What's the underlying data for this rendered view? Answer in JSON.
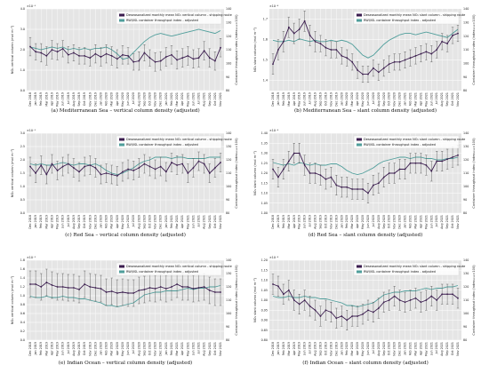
{
  "colors": {
    "no2": "#3b1d4f",
    "container": "#4f9e9b",
    "err": "#5a5a5a",
    "panel_bg": "#e5e5e5",
    "grid": "#ffffff"
  },
  "legend": {
    "no2_vertical": "Deseasonalized monthly mean NO₂ vertical column - shipping route",
    "no2_slant": "Deseasonalized monthly mean NO₂ slant column - shipping route",
    "container": "RWI/ISL container throughput index - adjusted"
  },
  "axis_labels": {
    "no2_vertical": "NO₂ vertical column (mol m⁻²)",
    "no2_slant": "NO₂ slant column (mol m⁻²)",
    "container": "Container throughput index (index₂₀₁₅=100)",
    "exp_vertical": "×10⁻⁵",
    "exp_slant": "×10⁻⁴"
  },
  "months": [
    "Dec 2018",
    "Jan 2019",
    "Feb 2019",
    "Mar 2019",
    "Apr 2019",
    "May 2019",
    "Jun 2019",
    "Jul 2019",
    "Aug 2019",
    "Sep 2019",
    "Oct 2019",
    "Nov 2019",
    "Dec 2019",
    "Jan 2020",
    "Feb 2020",
    "Mar 2020",
    "Apr 2020",
    "May 2020",
    "Jun 2020",
    "Jul 2020",
    "Aug 2020",
    "Sep 2020",
    "Oct 2020",
    "Nov 2020",
    "Dec 2020",
    "Jan 2021",
    "Feb 2021",
    "Mar 2021",
    "Apr 2021",
    "May 2021",
    "Jun 2021",
    "Jul 2021",
    "Aug 2021",
    "Sep 2021",
    "Oct 2021",
    "Nov 2021"
  ],
  "chart_data": [
    {
      "type": "line",
      "caption": "(a) Mediterranean Sea – vertical column density (adjusted)",
      "kind": "vertical",
      "ylim": [
        0,
        4
      ],
      "yticks": [
        0,
        1,
        2,
        3,
        4
      ],
      "ytick_labels": [
        "0.0",
        "1.0",
        "2.0",
        "3.0",
        "4.0"
      ],
      "y2lim": [
        80,
        140
      ],
      "y2ticks": [
        80,
        90,
        100,
        110,
        120,
        130,
        140
      ],
      "series": [
        {
          "values": [
            2.15,
            1.9,
            1.85,
            1.7,
            2.0,
            1.9,
            2.05,
            1.75,
            1.85,
            1.7,
            1.7,
            1.6,
            1.8,
            1.65,
            1.8,
            1.7,
            1.55,
            1.75,
            1.7,
            1.4,
            1.45,
            1.85,
            1.6,
            1.4,
            1.45,
            1.65,
            1.75,
            1.5,
            1.6,
            1.7,
            1.55,
            1.6,
            1.95,
            1.6,
            1.45,
            2.1
          ],
          "errors": [
            0.45,
            0.4,
            0.45,
            0.45,
            0.45,
            0.4,
            0.4,
            0.4,
            0.4,
            0.4,
            0.4,
            0.4,
            0.45,
            0.45,
            0.45,
            0.45,
            0.45,
            0.45,
            0.4,
            0.4,
            0.45,
            0.4,
            0.4,
            0.45,
            0.45,
            0.45,
            0.45,
            0.45,
            0.45,
            0.45,
            0.45,
            0.45,
            0.45,
            0.45,
            0.45,
            0.45
          ]
        },
        {
          "axis": "right",
          "values": [
            112,
            111,
            110,
            111,
            112,
            111,
            112,
            110,
            111,
            110,
            111,
            110,
            111,
            111,
            112,
            110,
            107,
            103,
            104,
            108,
            112,
            116,
            119,
            121,
            122,
            121,
            120,
            121,
            122,
            123,
            124,
            125,
            124,
            123,
            122,
            124
          ]
        }
      ]
    },
    {
      "type": "line",
      "caption": "(b) Mediterranean Sea – slant column density (adjusted)",
      "kind": "slant",
      "ylim": [
        1.35,
        1.75
      ],
      "yticks": [
        1.4,
        1.5,
        1.6,
        1.7
      ],
      "ytick_labels": [
        "1.4",
        "1.5",
        "1.6",
        "1.7"
      ],
      "y2lim": [
        80,
        140
      ],
      "y2ticks": [
        80,
        90,
        100,
        110,
        120,
        130,
        140
      ],
      "series": [
        {
          "values": [
            1.48,
            1.55,
            1.59,
            1.66,
            1.63,
            1.65,
            1.69,
            1.62,
            1.59,
            1.58,
            1.56,
            1.55,
            1.55,
            1.52,
            1.51,
            1.49,
            1.45,
            1.43,
            1.43,
            1.46,
            1.44,
            1.46,
            1.48,
            1.49,
            1.49,
            1.5,
            1.51,
            1.52,
            1.53,
            1.54,
            1.53,
            1.55,
            1.59,
            1.58,
            1.62,
            1.63
          ],
          "errors": [
            0.05,
            0.05,
            0.05,
            0.05,
            0.05,
            0.05,
            0.05,
            0.05,
            0.05,
            0.04,
            0.04,
            0.04,
            0.04,
            0.04,
            0.04,
            0.04,
            0.04,
            0.04,
            0.04,
            0.04,
            0.04,
            0.04,
            0.04,
            0.04,
            0.04,
            0.04,
            0.04,
            0.04,
            0.04,
            0.04,
            0.04,
            0.04,
            0.04,
            0.04,
            0.04,
            0.04
          ]
        },
        {
          "axis": "right",
          "values": [
            117,
            116,
            116,
            117,
            116,
            118,
            117,
            116,
            117,
            116,
            116,
            117,
            116,
            117,
            116,
            114,
            110,
            106,
            104,
            106,
            110,
            114,
            117,
            119,
            121,
            122,
            122,
            121,
            122,
            123,
            122,
            121,
            120,
            119,
            122,
            125
          ]
        }
      ]
    },
    {
      "type": "line",
      "caption": "(c) Red Sea – vertical column density (adjusted)",
      "kind": "vertical",
      "ylim": [
        0,
        3
      ],
      "yticks": [
        0,
        0.5,
        1,
        1.5,
        2,
        2.5,
        3
      ],
      "ytick_labels": [
        "0.0",
        "0.5",
        "1.0",
        "1.5",
        "2.0",
        "2.5",
        "3.0"
      ],
      "y2lim": [
        80,
        140
      ],
      "y2ticks": [
        80,
        90,
        100,
        110,
        120,
        130,
        140
      ],
      "series": [
        {
          "values": [
            1.75,
            1.5,
            1.8,
            1.45,
            1.85,
            1.6,
            1.75,
            1.85,
            1.7,
            1.55,
            1.75,
            1.8,
            1.7,
            1.45,
            1.5,
            1.45,
            1.4,
            1.55,
            1.65,
            1.6,
            1.7,
            1.85,
            1.75,
            1.65,
            1.75,
            1.55,
            1.9,
            1.8,
            1.85,
            1.5,
            1.7,
            1.95,
            1.85,
            1.5,
            1.7,
            1.9
          ],
          "errors": [
            0.35,
            0.35,
            0.35,
            0.35,
            0.35,
            0.35,
            0.35,
            0.35,
            0.35,
            0.35,
            0.35,
            0.35,
            0.35,
            0.35,
            0.35,
            0.35,
            0.35,
            0.35,
            0.35,
            0.35,
            0.35,
            0.35,
            0.35,
            0.35,
            0.35,
            0.35,
            0.35,
            0.35,
            0.35,
            0.35,
            0.35,
            0.35,
            0.35,
            0.35,
            0.35,
            0.35
          ]
        },
        {
          "axis": "right",
          "values": [
            117,
            116,
            117,
            116,
            116,
            117,
            118,
            117,
            116,
            117,
            117,
            116,
            117,
            115,
            112,
            110,
            109,
            110,
            112,
            114,
            117,
            119,
            120,
            122,
            122,
            122,
            121,
            122,
            122,
            121,
            121,
            121,
            121,
            122,
            122,
            122
          ]
        }
      ]
    },
    {
      "type": "line",
      "caption": "(d) Red Sea – slant column density (adjusted)",
      "kind": "slant",
      "ylim": [
        1.0,
        1.4
      ],
      "yticks": [
        1.0,
        1.05,
        1.1,
        1.15,
        1.2,
        1.25,
        1.3,
        1.35,
        1.4
      ],
      "ytick_labels": [
        "1.00",
        "1.05",
        "1.10",
        "1.15",
        "1.20",
        "1.25",
        "1.30",
        "1.35",
        "1.40"
      ],
      "y2lim": [
        80,
        140
      ],
      "y2ticks": [
        80,
        90,
        100,
        110,
        120,
        130,
        140
      ],
      "series": [
        {
          "values": [
            1.22,
            1.18,
            1.22,
            1.26,
            1.3,
            1.3,
            1.24,
            1.2,
            1.2,
            1.19,
            1.17,
            1.18,
            1.14,
            1.13,
            1.13,
            1.12,
            1.12,
            1.12,
            1.1,
            1.14,
            1.15,
            1.18,
            1.2,
            1.2,
            1.22,
            1.22,
            1.25,
            1.25,
            1.25,
            1.24,
            1.21,
            1.26,
            1.26,
            1.27,
            1.28,
            1.29
          ],
          "errors": [
            0.05,
            0.05,
            0.05,
            0.05,
            0.05,
            0.05,
            0.05,
            0.05,
            0.05,
            0.05,
            0.05,
            0.05,
            0.05,
            0.05,
            0.05,
            0.05,
            0.05,
            0.05,
            0.05,
            0.05,
            0.05,
            0.05,
            0.05,
            0.05,
            0.05,
            0.05,
            0.05,
            0.05,
            0.05,
            0.05,
            0.05,
            0.05,
            0.05,
            0.05,
            0.05,
            0.05
          ]
        },
        {
          "axis": "right",
          "values": [
            118,
            117,
            116,
            117,
            116,
            118,
            117,
            116,
            117,
            116,
            116,
            117,
            117,
            115,
            112,
            110,
            109,
            110,
            112,
            114,
            117,
            119,
            120,
            121,
            122,
            122,
            121,
            122,
            122,
            121,
            121,
            120,
            120,
            121,
            121,
            122
          ]
        }
      ]
    },
    {
      "type": "line",
      "caption": "(e) Indian Ocean – vertical column density (adjusted)",
      "kind": "vertical",
      "ylim": [
        0,
        1.8
      ],
      "yticks": [
        0,
        0.2,
        0.4,
        0.6,
        0.8,
        1,
        1.2,
        1.4,
        1.6,
        1.8
      ],
      "ytick_labels": [
        "0.0",
        "0.2",
        "0.4",
        "0.6",
        "0.8",
        "1.0",
        "1.2",
        "1.4",
        "1.6",
        "1.8"
      ],
      "y2lim": [
        80,
        140
      ],
      "y2ticks": [
        80,
        90,
        100,
        110,
        120,
        130,
        140
      ],
      "series": [
        {
          "values": [
            1.26,
            1.26,
            1.2,
            1.3,
            1.24,
            1.2,
            1.2,
            1.18,
            1.18,
            1.14,
            1.26,
            1.2,
            1.18,
            1.16,
            1.08,
            1.1,
            1.06,
            1.08,
            1.06,
            1.06,
            1.12,
            1.14,
            1.18,
            1.16,
            1.2,
            1.16,
            1.2,
            1.26,
            1.2,
            1.2,
            1.16,
            1.18,
            1.2,
            1.12,
            1.08,
            1.08
          ],
          "errors": [
            0.3,
            0.3,
            0.3,
            0.3,
            0.3,
            0.3,
            0.3,
            0.3,
            0.3,
            0.3,
            0.3,
            0.3,
            0.3,
            0.3,
            0.3,
            0.3,
            0.3,
            0.3,
            0.3,
            0.3,
            0.3,
            0.3,
            0.3,
            0.3,
            0.3,
            0.3,
            0.3,
            0.3,
            0.3,
            0.3,
            0.3,
            0.3,
            0.3,
            0.3,
            0.3,
            0.3
          ]
        },
        {
          "axis": "right",
          "values": [
            113,
            112,
            112,
            113,
            112,
            112,
            113,
            112,
            112,
            111,
            111,
            110,
            109,
            108,
            106,
            106,
            105,
            106,
            107,
            108,
            111,
            114,
            115,
            116,
            116,
            117,
            117,
            117,
            118,
            119,
            118,
            119,
            119,
            120,
            120,
            121
          ]
        }
      ]
    },
    {
      "type": "line",
      "caption": "(f) Indian Ocean – slant column density (adjusted)",
      "kind": "slant",
      "ylim": [
        0.8,
        1.2
      ],
      "yticks": [
        0.8,
        0.85,
        0.9,
        0.95,
        1.0,
        1.05,
        1.1,
        1.15,
        1.2
      ],
      "ytick_labels": [
        "0.80",
        "0.85",
        "0.90",
        "0.95",
        "1.00",
        "1.05",
        "1.10",
        "1.15",
        "1.20"
      ],
      "y2lim": [
        80,
        140
      ],
      "y2ticks": [
        80,
        90,
        100,
        110,
        120,
        130,
        140
      ],
      "series": [
        {
          "values": [
            1.08,
            1.07,
            1.03,
            1.05,
            1.0,
            0.98,
            1.0,
            0.97,
            0.95,
            0.92,
            0.95,
            0.94,
            0.91,
            0.92,
            0.9,
            0.92,
            0.92,
            0.93,
            0.95,
            0.94,
            0.96,
            0.99,
            1.0,
            1.02,
            1.0,
            0.99,
            1.0,
            1.01,
            0.99,
            1.0,
            1.02,
            1.0,
            1.03,
            1.03,
            1.03,
            1.01
          ],
          "errors": [
            0.05,
            0.05,
            0.05,
            0.05,
            0.05,
            0.05,
            0.05,
            0.05,
            0.05,
            0.05,
            0.05,
            0.05,
            0.05,
            0.05,
            0.05,
            0.05,
            0.05,
            0.05,
            0.05,
            0.05,
            0.05,
            0.05,
            0.05,
            0.05,
            0.05,
            0.05,
            0.05,
            0.05,
            0.05,
            0.05,
            0.05,
            0.05,
            0.05,
            0.05,
            0.05,
            0.05
          ]
        },
        {
          "axis": "right",
          "values": [
            113,
            112,
            112,
            113,
            112,
            112,
            113,
            112,
            112,
            111,
            111,
            110,
            109,
            108,
            106,
            106,
            105,
            106,
            107,
            108,
            111,
            114,
            115,
            116,
            116,
            117,
            117,
            117,
            118,
            119,
            118,
            119,
            119,
            120,
            120,
            121
          ]
        }
      ]
    }
  ]
}
